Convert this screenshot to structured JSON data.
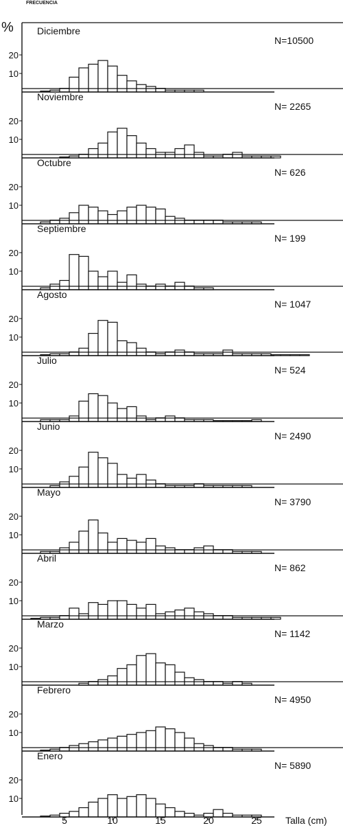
{
  "chart_data": {
    "type": "bar",
    "header_label": "FRECUENCIA",
    "ylabel": "%",
    "xlabel": "Talla (cm)",
    "x_ticks": [
      5,
      10,
      15,
      20,
      25
    ],
    "y_ticks": [
      10,
      20
    ],
    "bin_width": 1,
    "panels": [
      {
        "month": "Diciembre",
        "n_label": "N=10500",
        "x": [
          3,
          4,
          5,
          6,
          7,
          8,
          9,
          10,
          11,
          12,
          13,
          14,
          15,
          16,
          17,
          18,
          19
        ],
        "values": [
          0.5,
          1,
          2,
          8,
          13,
          15,
          17,
          14,
          9,
          6,
          4,
          3,
          2,
          1,
          1,
          1,
          1
        ]
      },
      {
        "month": "Noviembre",
        "n_label": "N= 2265",
        "x": [
          5,
          6,
          7,
          8,
          9,
          10,
          11,
          12,
          13,
          14,
          15,
          16,
          17,
          18,
          19,
          20,
          21,
          22,
          23,
          24,
          25,
          26,
          27
        ],
        "values": [
          0.5,
          1,
          2,
          5,
          8,
          14,
          16,
          12,
          8,
          5,
          3,
          3,
          5,
          7,
          3,
          1,
          1,
          2,
          3,
          1,
          1,
          1,
          1
        ]
      },
      {
        "month": "Octubre",
        "n_label": "N= 626",
        "x": [
          3,
          4,
          5,
          6,
          7,
          8,
          9,
          10,
          11,
          12,
          13,
          14,
          15,
          16,
          17,
          18,
          19,
          20,
          21,
          22,
          23,
          24,
          25
        ],
        "values": [
          1,
          2,
          3,
          6,
          10,
          9,
          7,
          5,
          7,
          9,
          10,
          9,
          8,
          4,
          3,
          2,
          2,
          2,
          2,
          1,
          1,
          1,
          1
        ]
      },
      {
        "month": "Septiembre",
        "n_label": "N= 199",
        "x": [
          3,
          4,
          5,
          6,
          7,
          8,
          9,
          10,
          11,
          12,
          13,
          14,
          15,
          16,
          17,
          18,
          19,
          20
        ],
        "values": [
          1,
          3,
          5,
          19,
          18,
          10,
          7,
          10,
          4,
          8,
          3,
          2,
          3,
          2,
          4,
          2,
          1,
          1
        ]
      },
      {
        "month": "Agosto",
        "n_label": "N= 1047",
        "x": [
          3,
          4,
          5,
          6,
          7,
          8,
          9,
          10,
          11,
          12,
          13,
          14,
          15,
          16,
          17,
          18,
          19,
          20,
          21,
          22,
          23,
          24,
          25,
          26,
          27,
          28,
          29,
          30
        ],
        "values": [
          0.5,
          1,
          1,
          2,
          4,
          12,
          19,
          18,
          8,
          7,
          4,
          2,
          1,
          2,
          3,
          2,
          1,
          1,
          1,
          3,
          1,
          1,
          1,
          1,
          0.5,
          0.5,
          0.5,
          0.5
        ]
      },
      {
        "month": "Julio",
        "n_label": "N= 524",
        "x": [
          3,
          4,
          5,
          6,
          7,
          8,
          9,
          10,
          11,
          12,
          13,
          14,
          15,
          16,
          17,
          18,
          19,
          20,
          21,
          22,
          23,
          24,
          25
        ],
        "values": [
          1,
          1,
          1,
          3,
          11,
          15,
          14,
          10,
          7,
          8,
          3,
          1,
          2,
          3,
          2,
          1,
          1,
          1,
          0.5,
          0.5,
          0.5,
          0.5,
          1
        ]
      },
      {
        "month": "Junio",
        "n_label": "N= 2490",
        "x": [
          4,
          5,
          6,
          7,
          8,
          9,
          10,
          11,
          12,
          13,
          14,
          15,
          16,
          17,
          18,
          19,
          20,
          21,
          22,
          23,
          24
        ],
        "values": [
          1,
          3,
          6,
          11,
          19,
          16,
          13,
          7,
          5,
          7,
          4,
          2,
          1,
          1,
          1,
          2,
          1,
          1,
          1,
          1,
          1
        ]
      },
      {
        "month": "Mayo",
        "n_label": "N= 3790",
        "x": [
          3,
          4,
          5,
          6,
          7,
          8,
          9,
          10,
          11,
          12,
          13,
          14,
          15,
          16,
          17,
          18,
          19,
          20,
          21,
          22,
          23,
          24,
          25
        ],
        "values": [
          1,
          1,
          3,
          6,
          12,
          18,
          11,
          6,
          8,
          7,
          6,
          8,
          4,
          3,
          2,
          2,
          3,
          4,
          2,
          2,
          1,
          1,
          1
        ]
      },
      {
        "month": "Abril",
        "n_label": "N= 862",
        "x": [
          2,
          3,
          4,
          5,
          6,
          7,
          8,
          9,
          10,
          11,
          12,
          13,
          14,
          15,
          16,
          17,
          18,
          19,
          20,
          21,
          22,
          23,
          24,
          25,
          26,
          27
        ],
        "values": [
          0.5,
          1,
          1,
          2,
          6,
          3,
          9,
          8,
          10,
          10,
          8,
          6,
          8,
          3,
          4,
          5,
          6,
          4,
          3,
          2,
          2,
          1,
          1,
          1,
          1,
          1
        ]
      },
      {
        "month": "Marzo",
        "n_label": "N= 1142",
        "x": [
          7,
          8,
          9,
          10,
          11,
          12,
          13,
          14,
          15,
          16,
          17,
          18,
          19,
          20,
          21,
          22,
          23,
          24
        ],
        "values": [
          1,
          2,
          3,
          5,
          9,
          11,
          16,
          17,
          12,
          11,
          7,
          4,
          3,
          2,
          2,
          1,
          2,
          1
        ]
      },
      {
        "month": "Febrero",
        "n_label": "N= 4950",
        "x": [
          3,
          4,
          5,
          6,
          7,
          8,
          9,
          10,
          11,
          12,
          13,
          14,
          15,
          16,
          17,
          18,
          19,
          20,
          21,
          22,
          23,
          24,
          25
        ],
        "values": [
          0.5,
          1,
          2,
          3,
          4,
          5,
          6,
          7,
          8,
          9,
          10,
          11,
          13,
          12,
          10,
          7,
          4,
          3,
          2,
          2,
          1,
          1,
          1
        ]
      },
      {
        "month": "Enero",
        "n_label": "N= 5890",
        "x": [
          3,
          4,
          5,
          6,
          7,
          8,
          9,
          10,
          11,
          12,
          13,
          14,
          15,
          16,
          17,
          18,
          19,
          20,
          21,
          22,
          23,
          24,
          25
        ],
        "values": [
          0.5,
          1,
          2,
          3,
          5,
          8,
          10,
          12,
          10,
          11,
          12,
          10,
          7,
          5,
          3,
          2,
          1,
          2,
          4,
          2,
          1,
          1,
          1
        ]
      }
    ]
  }
}
